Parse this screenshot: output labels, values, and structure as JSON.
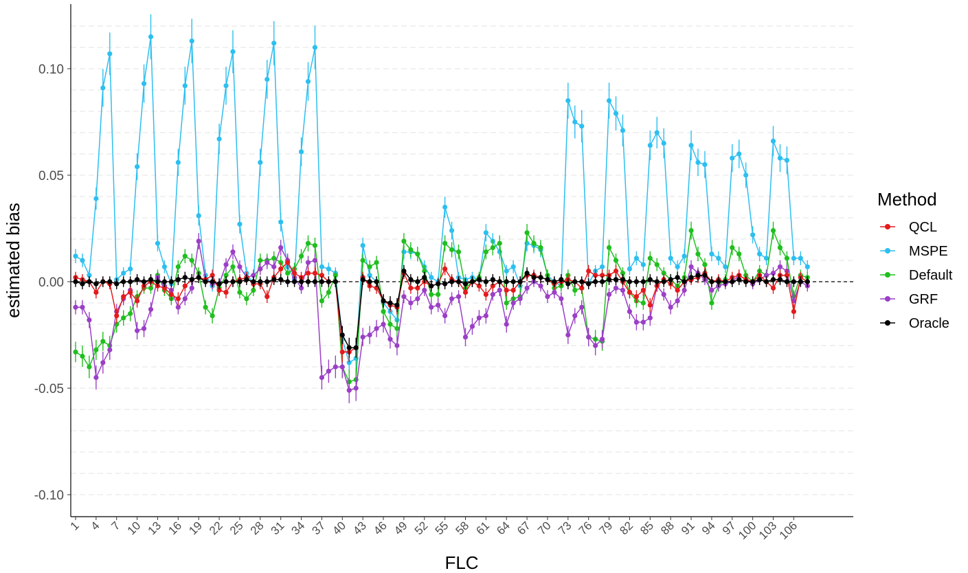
{
  "chart_data": {
    "type": "line",
    "title": "",
    "xlabel": "FLC",
    "ylabel": "estimated bias",
    "xlim": [
      1,
      108
    ],
    "ylim": [
      -0.11,
      0.128
    ],
    "yticks": [
      -0.1,
      -0.05,
      0.0,
      0.05,
      0.1
    ],
    "ytick_labels": [
      "-0.10",
      "-0.05",
      "0.00",
      "0.05",
      "0.10"
    ],
    "xticks": [
      1,
      4,
      7,
      10,
      13,
      16,
      19,
      22,
      25,
      28,
      31,
      34,
      37,
      40,
      43,
      46,
      49,
      52,
      55,
      58,
      61,
      64,
      67,
      70,
      73,
      76,
      79,
      82,
      85,
      88,
      91,
      94,
      97,
      100,
      103,
      106
    ],
    "xtick_labels": [
      "1",
      "4",
      "7",
      "10",
      "13",
      "16",
      "19",
      "22",
      "25",
      "28",
      "31",
      "34",
      "37",
      "40",
      "43",
      "46",
      "49",
      "52",
      "55",
      "58",
      "61",
      "64",
      "67",
      "70",
      "73",
      "76",
      "79",
      "82",
      "85",
      "88",
      "91",
      "94",
      "97",
      "100",
      "103",
      "106"
    ],
    "reference_line": 0,
    "grid": "horizontal dashed",
    "legend": {
      "title": "Method",
      "position": "right"
    },
    "series": [
      {
        "name": "QCL",
        "color": "#e41a1c",
        "values": [
          0.002,
          0.001,
          0.0,
          -0.005,
          0.0,
          -0.001,
          -0.016,
          -0.007,
          -0.005,
          -0.009,
          -0.002,
          0.0,
          -0.002,
          -0.003,
          -0.006,
          -0.008,
          -0.002,
          0.001,
          0.002,
          0.001,
          0.003,
          -0.004,
          -0.005,
          0.0,
          0.001,
          0.002,
          -0.001,
          -0.001,
          -0.007,
          0.002,
          0.006,
          0.009,
          0.004,
          0.002,
          0.004,
          0.004,
          0.003,
          0.0,
          0.0,
          -0.033,
          -0.033,
          -0.031,
          0.002,
          -0.002,
          -0.003,
          -0.009,
          -0.011,
          -0.012,
          0.004,
          -0.003,
          -0.003,
          0.0,
          -0.002,
          -0.001,
          0.006,
          0.001,
          0.0,
          -0.005,
          0.0,
          -0.002,
          -0.006,
          -0.002,
          0.0,
          -0.004,
          -0.004,
          0.0,
          0.003,
          0.003,
          0.002,
          0.001,
          -0.001,
          0.0,
          0.001,
          0.0,
          -0.003,
          0.005,
          0.003,
          0.003,
          0.003,
          0.005,
          0.0,
          -0.005,
          -0.007,
          -0.004,
          -0.011,
          -0.002,
          0.001,
          -0.001,
          -0.004,
          0.0,
          0.001,
          0.002,
          0.004,
          0.0,
          0.001,
          0.0,
          0.002,
          0.003,
          0.001,
          0.0,
          0.003,
          0.0,
          -0.003,
          0.003,
          0.003,
          -0.014,
          0.002,
          0.0
        ]
      },
      {
        "name": "MSPE",
        "color": "#2cbff0",
        "values": [
          0.012,
          0.01,
          0.003,
          0.039,
          0.091,
          0.107,
          0.001,
          0.004,
          0.006,
          0.054,
          0.093,
          0.115,
          0.018,
          0.007,
          -0.001,
          0.056,
          0.092,
          0.113,
          0.031,
          0.003,
          -0.002,
          0.067,
          0.092,
          0.108,
          0.027,
          0.004,
          -0.001,
          0.056,
          0.095,
          0.112,
          0.028,
          0.007,
          0.001,
          0.061,
          0.094,
          0.11,
          0.007,
          0.006,
          0.004,
          -0.027,
          -0.038,
          -0.036,
          0.017,
          0.003,
          0.0,
          -0.01,
          -0.014,
          -0.018,
          0.014,
          0.014,
          0.013,
          0.007,
          0.002,
          0.0,
          0.035,
          0.024,
          0.002,
          0.001,
          0.002,
          0.001,
          0.023,
          0.019,
          0.014,
          0.005,
          0.007,
          -0.002,
          0.018,
          0.017,
          0.015,
          0.003,
          0.0,
          -0.002,
          0.085,
          0.075,
          0.073,
          -0.001,
          0.005,
          0.007,
          0.085,
          0.079,
          0.071,
          0.006,
          0.011,
          0.008,
          0.064,
          0.07,
          0.065,
          0.011,
          0.007,
          0.012,
          0.064,
          0.056,
          0.055,
          0.013,
          0.011,
          0.007,
          0.058,
          0.06,
          0.05,
          0.022,
          0.013,
          0.011,
          0.066,
          0.058,
          0.057,
          0.011,
          0.011,
          0.007
        ]
      },
      {
        "name": "Default",
        "color": "#1fbf1f",
        "values": [
          -0.033,
          -0.035,
          -0.04,
          -0.032,
          -0.028,
          -0.03,
          -0.02,
          -0.017,
          -0.015,
          -0.007,
          -0.003,
          -0.003,
          0.003,
          -0.004,
          -0.008,
          0.007,
          0.012,
          0.01,
          0.004,
          -0.012,
          -0.016,
          -0.003,
          0.003,
          0.007,
          -0.005,
          -0.008,
          -0.004,
          0.01,
          0.01,
          0.011,
          0.009,
          0.004,
          0.006,
          0.012,
          0.018,
          0.017,
          -0.009,
          -0.005,
          0.003,
          -0.04,
          -0.047,
          -0.046,
          0.01,
          0.007,
          0.009,
          -0.014,
          -0.02,
          -0.022,
          0.019,
          0.015,
          0.013,
          0.005,
          -0.006,
          -0.006,
          0.018,
          0.015,
          0.014,
          -0.003,
          0.0,
          0.002,
          0.014,
          0.016,
          0.018,
          -0.01,
          -0.008,
          -0.007,
          0.023,
          0.018,
          0.016,
          0.003,
          -0.003,
          -0.002,
          0.003,
          -0.004,
          -0.003,
          -0.026,
          -0.027,
          -0.028,
          0.016,
          0.01,
          0.004,
          -0.005,
          -0.009,
          -0.01,
          0.011,
          0.008,
          0.004,
          0.001,
          -0.002,
          0.002,
          0.024,
          0.013,
          0.008,
          -0.01,
          -0.002,
          0.001,
          0.016,
          0.013,
          0.003,
          0.0,
          0.005,
          0.003,
          0.024,
          0.016,
          0.011,
          -0.007,
          0.003,
          0.002
        ]
      },
      {
        "name": "GRF",
        "color": "#9b3fc6",
        "values": [
          -0.012,
          -0.012,
          -0.018,
          -0.045,
          -0.038,
          -0.032,
          -0.014,
          -0.008,
          -0.004,
          -0.023,
          -0.022,
          -0.013,
          0.002,
          -0.002,
          -0.004,
          -0.012,
          -0.008,
          -0.003,
          0.019,
          0.001,
          -0.001,
          -0.001,
          0.008,
          0.014,
          0.007,
          0.002,
          0.003,
          0.006,
          0.009,
          0.007,
          0.016,
          0.01,
          0.002,
          -0.003,
          0.009,
          0.01,
          -0.045,
          -0.042,
          -0.04,
          -0.04,
          -0.051,
          -0.05,
          -0.026,
          -0.025,
          -0.022,
          -0.02,
          -0.027,
          -0.03,
          -0.007,
          -0.01,
          -0.008,
          -0.004,
          -0.012,
          -0.011,
          -0.016,
          -0.008,
          -0.007,
          -0.026,
          -0.021,
          -0.017,
          -0.016,
          -0.006,
          -0.004,
          -0.02,
          -0.01,
          -0.008,
          -0.003,
          0.0,
          -0.002,
          -0.007,
          -0.005,
          -0.008,
          -0.025,
          -0.016,
          -0.012,
          -0.026,
          -0.03,
          -0.027,
          -0.006,
          -0.003,
          -0.004,
          -0.014,
          -0.019,
          -0.019,
          -0.017,
          -0.002,
          -0.006,
          -0.012,
          -0.009,
          -0.004,
          0.007,
          0.004,
          0.001,
          -0.004,
          -0.002,
          -0.001,
          0.0,
          0.003,
          0.001,
          -0.001,
          0.001,
          0.003,
          0.004,
          0.007,
          0.005,
          -0.009,
          0.0,
          -0.002
        ]
      },
      {
        "name": "Oracle",
        "color": "#000000",
        "values": [
          0.0,
          -0.001,
          0.0,
          -0.001,
          0.0,
          0.0,
          -0.001,
          0.0,
          0.0,
          0.001,
          0.0,
          0.001,
          0.0,
          0.0,
          0.0,
          0.001,
          0.002,
          0.001,
          0.002,
          0.0,
          0.0,
          -0.001,
          0.0,
          0.0,
          0.0,
          0.001,
          0.0,
          0.0,
          0.0,
          0.001,
          0.001,
          0.0,
          0.0,
          0.0,
          0.0,
          0.0,
          0.0,
          0.0,
          0.0,
          -0.025,
          -0.031,
          -0.031,
          0.001,
          0.0,
          0.0,
          -0.009,
          -0.01,
          -0.011,
          0.005,
          0.001,
          0.0,
          0.002,
          -0.002,
          -0.001,
          -0.001,
          0.0,
          0.0,
          -0.001,
          0.0,
          0.001,
          0.0,
          0.001,
          0.0,
          0.0,
          0.0,
          0.0,
          0.004,
          0.002,
          0.002,
          0.001,
          0.0,
          0.001,
          -0.001,
          0.0,
          0.0,
          -0.001,
          0.0,
          0.0,
          0.001,
          0.001,
          0.001,
          0.0,
          0.0,
          0.0,
          0.001,
          0.0,
          0.0,
          0.001,
          0.002,
          0.0,
          0.002,
          0.003,
          0.003,
          0.0,
          0.0,
          0.0,
          0.0,
          0.001,
          0.0,
          0.0,
          0.001,
          0.0,
          0.001,
          0.001,
          0.0,
          0.0,
          0.0,
          0.0
        ]
      }
    ]
  }
}
